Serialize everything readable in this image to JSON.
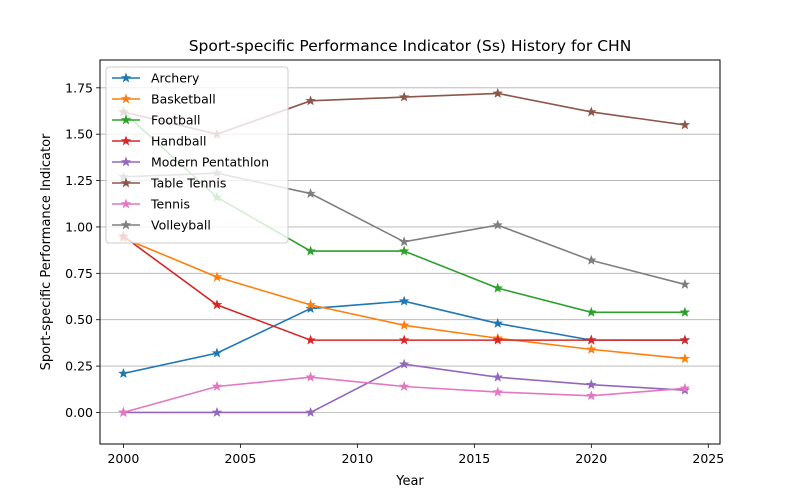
{
  "chart_data": {
    "type": "line",
    "title": "Sport-specific Performance Indicator (Ss) History for CHN",
    "xlabel": "Year",
    "ylabel": "Sport-specific Performance Indicator",
    "xlim": [
      1999,
      2025.5
    ],
    "ylim": [
      -0.17,
      1.9
    ],
    "x_ticks": [
      2000,
      2005,
      2010,
      2015,
      2020,
      2025
    ],
    "y_ticks": [
      0.0,
      0.25,
      0.5,
      0.75,
      1.0,
      1.25,
      1.5,
      1.75
    ],
    "x_tick_labels": [
      "2000",
      "2005",
      "2010",
      "2015",
      "2020",
      "2025"
    ],
    "y_tick_labels": [
      "0.00",
      "0.25",
      "0.50",
      "0.75",
      "1.00",
      "1.25",
      "1.50",
      "1.75"
    ],
    "grid": "horizontal",
    "legend_position": "upper-left",
    "marker": "star",
    "x": [
      2000,
      2004,
      2008,
      2012,
      2016,
      2020,
      2024
    ],
    "series": [
      {
        "name": "Archery",
        "color": "#1f77b4",
        "values": [
          0.21,
          0.32,
          0.56,
          0.6,
          0.48,
          0.39,
          0.39
        ]
      },
      {
        "name": "Basketball",
        "color": "#ff7f0e",
        "values": [
          0.94,
          0.73,
          0.58,
          0.47,
          0.4,
          0.34,
          0.29
        ]
      },
      {
        "name": "Football",
        "color": "#2ca02c",
        "values": [
          1.62,
          1.16,
          0.87,
          0.87,
          0.67,
          0.54,
          0.54
        ]
      },
      {
        "name": "Handball",
        "color": "#d62728",
        "values": [
          0.95,
          0.58,
          0.39,
          0.39,
          0.39,
          0.39,
          0.39
        ]
      },
      {
        "name": "Modern Pentathlon",
        "color": "#9467bd",
        "values": [
          0.0,
          0.0,
          0.0,
          0.26,
          0.19,
          0.15,
          0.12
        ]
      },
      {
        "name": "Table Tennis",
        "color": "#8c564b",
        "values": [
          1.62,
          1.5,
          1.68,
          1.7,
          1.72,
          1.62,
          1.55
        ]
      },
      {
        "name": "Tennis",
        "color": "#e377c2",
        "values": [
          0.0,
          0.14,
          0.19,
          0.14,
          0.11,
          0.09,
          0.13
        ]
      },
      {
        "name": "Volleyball",
        "color": "#7f7f7f",
        "values": [
          1.27,
          1.29,
          1.18,
          0.92,
          1.01,
          0.82,
          0.69
        ]
      }
    ]
  }
}
